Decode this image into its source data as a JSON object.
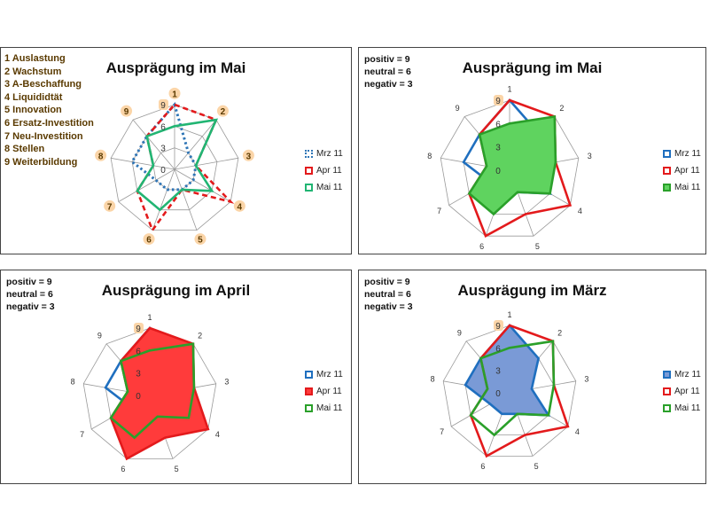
{
  "chart_data": [
    {
      "type": "radar",
      "title": "Ausprägung im Mai",
      "categories": [
        "1",
        "2",
        "3",
        "4",
        "5",
        "6",
        "7",
        "8",
        "9"
      ],
      "category_list": [
        "1 Auslastung",
        "2 Wachstum",
        "3 A-Beschaffung",
        "4 Liquididtät",
        "5 Innovation",
        "6 Ersatz-Investition",
        "7 Neu-Investition",
        "8 Stellen",
        "9 Weiterbildung"
      ],
      "rmax": 9,
      "tick_labels": [
        "0",
        "3",
        "6",
        "9"
      ],
      "series": [
        {
          "name": "Mrz 11",
          "values": [
            9,
            3,
            3,
            3,
            3,
            3,
            3,
            6,
            6
          ],
          "color": "#2e75b6",
          "style": "dotted",
          "fill": false
        },
        {
          "name": "Apr 11",
          "values": [
            9,
            9,
            3,
            9,
            3,
            9,
            6,
            3,
            6
          ],
          "color": "#e31a1c",
          "style": "dashed",
          "fill": false
        },
        {
          "name": "Mai 11",
          "values": [
            6,
            9,
            3,
            6,
            3,
            6,
            6,
            3,
            6
          ],
          "color": "#21b573",
          "style": "solid",
          "fill": false
        }
      ]
    },
    {
      "type": "radar",
      "title": "Ausprägung im Mai",
      "notes": [
        "positiv = 9",
        "neutral = 6",
        "negativ = 3"
      ],
      "categories": [
        "1",
        "2",
        "3",
        "4",
        "5",
        "6",
        "7",
        "8",
        "9"
      ],
      "rmax": 9,
      "tick_labels": [
        "0",
        "3",
        "6",
        "9"
      ],
      "series": [
        {
          "name": "Mrz 11",
          "values": [
            9,
            6,
            3,
            6,
            3,
            3,
            3,
            6,
            6
          ],
          "color": "#1f6fbf",
          "style": "solid",
          "fill": false
        },
        {
          "name": "Apr 11",
          "values": [
            9,
            9,
            6,
            9,
            6,
            9,
            6,
            3,
            6
          ],
          "color": "#e31a1c",
          "style": "solid",
          "fill": false
        },
        {
          "name": "Mai 11",
          "values": [
            6,
            9,
            6,
            6,
            3,
            6,
            6,
            3,
            6
          ],
          "color": "#2aa02a",
          "style": "solid",
          "fill": true,
          "fill_color": "#5fd35f"
        }
      ]
    },
    {
      "type": "radar",
      "title": "Ausprägung im April",
      "notes": [
        "positiv = 9",
        "neutral = 6",
        "negativ = 3"
      ],
      "categories": [
        "1",
        "2",
        "3",
        "4",
        "5",
        "6",
        "7",
        "8",
        "9"
      ],
      "rmax": 9,
      "tick_labels": [
        "0",
        "3",
        "6",
        "9"
      ],
      "series": [
        {
          "name": "Mrz 11",
          "values": [
            9,
            6,
            3,
            6,
            3,
            3,
            3,
            6,
            6
          ],
          "color": "#1f6fbf",
          "style": "solid",
          "fill": false
        },
        {
          "name": "Apr 11",
          "values": [
            9,
            9,
            6,
            9,
            6,
            9,
            6,
            3,
            6
          ],
          "color": "#e31a1c",
          "style": "solid",
          "fill": true,
          "fill_color": "#ff3b3b"
        },
        {
          "name": "Mai 11",
          "values": [
            6,
            9,
            6,
            6,
            3,
            6,
            6,
            3,
            6
          ],
          "color": "#2aa02a",
          "style": "solid",
          "fill": false
        }
      ]
    },
    {
      "type": "radar",
      "title": "Ausprägung im März",
      "notes": [
        "positiv = 9",
        "neutral = 6",
        "negativ = 3"
      ],
      "categories": [
        "1",
        "2",
        "3",
        "4",
        "5",
        "6",
        "7",
        "8",
        "9"
      ],
      "rmax": 9,
      "tick_labels": [
        "0",
        "3",
        "6",
        "9"
      ],
      "series": [
        {
          "name": "Mrz 11",
          "values": [
            9,
            6,
            3,
            6,
            3,
            3,
            3,
            6,
            6
          ],
          "color": "#1f6fbf",
          "style": "solid",
          "fill": true,
          "fill_color": "#7a9ad6"
        },
        {
          "name": "Apr 11",
          "values": [
            9,
            9,
            6,
            9,
            6,
            9,
            6,
            3,
            6
          ],
          "color": "#e31a1c",
          "style": "solid",
          "fill": false
        },
        {
          "name": "Mai 11",
          "values": [
            6,
            9,
            6,
            6,
            3,
            6,
            6,
            3,
            6
          ],
          "color": "#2aa02a",
          "style": "solid",
          "fill": false
        }
      ]
    }
  ]
}
